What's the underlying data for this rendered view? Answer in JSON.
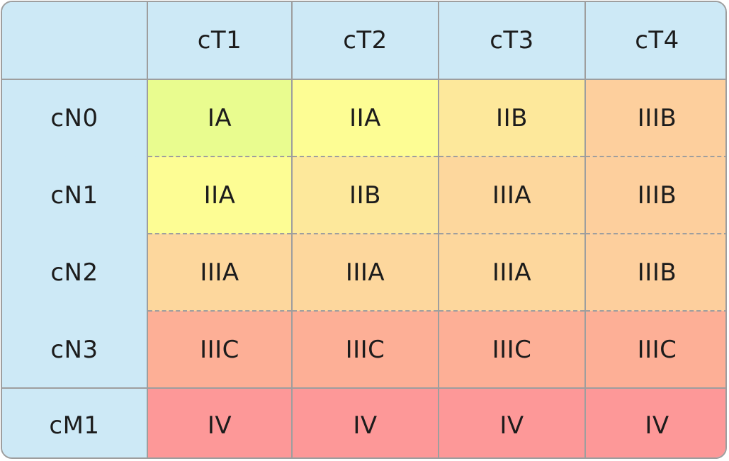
{
  "columns": [
    "cT1",
    "cT2",
    "cT3",
    "cT4"
  ],
  "rows": [
    {
      "label": "cN0",
      "cells": [
        "IA",
        "IIA",
        "IIB",
        "IIIB"
      ]
    },
    {
      "label": "cN1",
      "cells": [
        "IIA",
        "IIB",
        "IIIA",
        "IIIB"
      ]
    },
    {
      "label": "cN2",
      "cells": [
        "IIIA",
        "IIIA",
        "IIIA",
        "IIIB"
      ]
    },
    {
      "label": "cN3",
      "cells": [
        "IIIC",
        "IIIC",
        "IIIC",
        "IIIC"
      ]
    },
    {
      "label": "cM1",
      "cells": [
        "IV",
        "IV",
        "IV",
        "IV"
      ]
    }
  ],
  "colors": {
    "header": "#cde9f6",
    "border": "#9e9e9e",
    "stages": {
      "IA": "#e9fc8f",
      "IIA": "#fdfd94",
      "IIB": "#fde89b",
      "IIIA": "#fdd79d",
      "IIIB": "#fdcf9d",
      "IIIC": "#fdaf96",
      "IV": "#fd9898"
    }
  }
}
